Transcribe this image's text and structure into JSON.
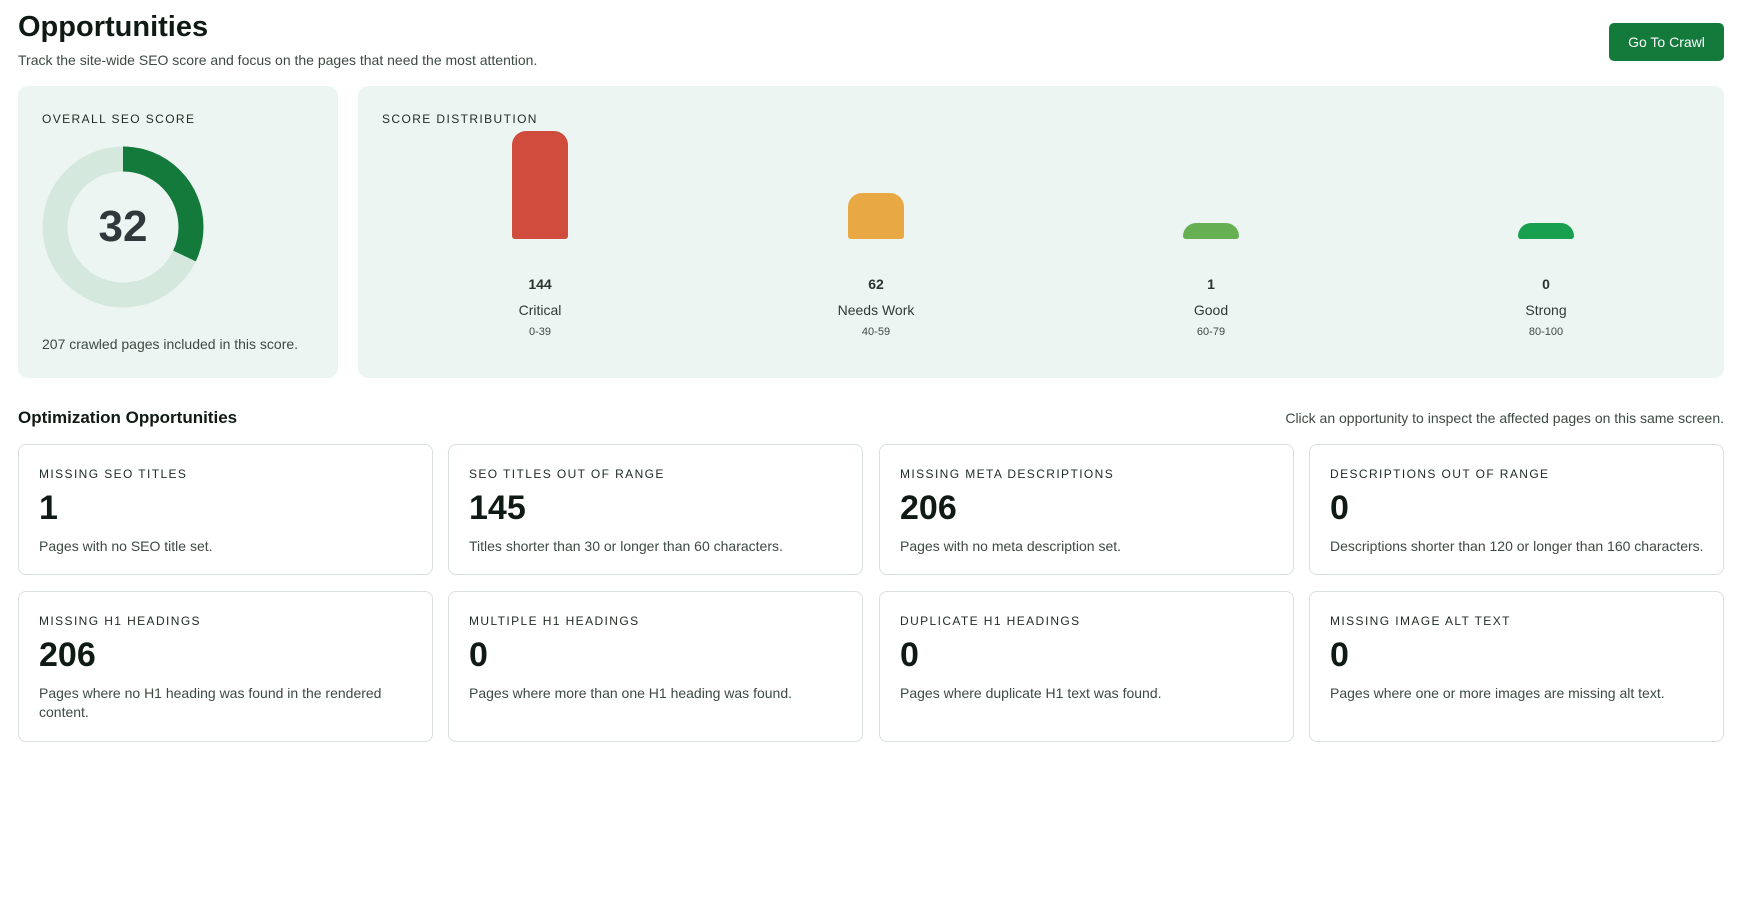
{
  "header": {
    "title": "Opportunities",
    "subtitle": "Track the site-wide SEO score and focus on the pages that need the most attention.",
    "crawl_button": "Go To Crawl"
  },
  "score": {
    "label": "OVERALL SEO SCORE",
    "value": "32",
    "fraction": 0.32,
    "caption": "207 crawled pages included in this score.",
    "colors": {
      "fill": "#137a3c",
      "track": "#d5e8de"
    }
  },
  "distribution": {
    "label": "SCORE DISTRIBUTION",
    "buckets": [
      {
        "count": "144",
        "label": "Critical",
        "range": "0-39",
        "value": 144,
        "color": "#d04d3d"
      },
      {
        "count": "62",
        "label": "Needs Work",
        "range": "40-59",
        "value": 62,
        "color": "#e8a844"
      },
      {
        "count": "1",
        "label": "Good",
        "range": "60-79",
        "value": 1,
        "color": "#66b053"
      },
      {
        "count": "0",
        "label": "Strong",
        "range": "80-100",
        "value": 0,
        "color": "#18a04f"
      }
    ]
  },
  "opportunities": {
    "title": "Optimization Opportunities",
    "hint": "Click an opportunity to inspect the affected pages on this same screen.",
    "cards": [
      {
        "label": "MISSING SEO TITLES",
        "value": "1",
        "desc": "Pages with no SEO title set."
      },
      {
        "label": "SEO TITLES OUT OF RANGE",
        "value": "145",
        "desc": "Titles shorter than 30 or longer than 60 characters."
      },
      {
        "label": "MISSING META DESCRIPTIONS",
        "value": "206",
        "desc": "Pages with no meta description set."
      },
      {
        "label": "DESCRIPTIONS OUT OF RANGE",
        "value": "0",
        "desc": "Descriptions shorter than 120 or longer than 160 characters."
      },
      {
        "label": "MISSING H1 HEADINGS",
        "value": "206",
        "desc": "Pages where no H1 heading was found in the rendered content."
      },
      {
        "label": "MULTIPLE H1 HEADINGS",
        "value": "0",
        "desc": "Pages where more than one H1 heading was found."
      },
      {
        "label": "DUPLICATE H1 HEADINGS",
        "value": "0",
        "desc": "Pages where duplicate H1 text was found."
      },
      {
        "label": "MISSING IMAGE ALT TEXT",
        "value": "0",
        "desc": "Pages where one or more images are missing alt text."
      }
    ]
  }
}
